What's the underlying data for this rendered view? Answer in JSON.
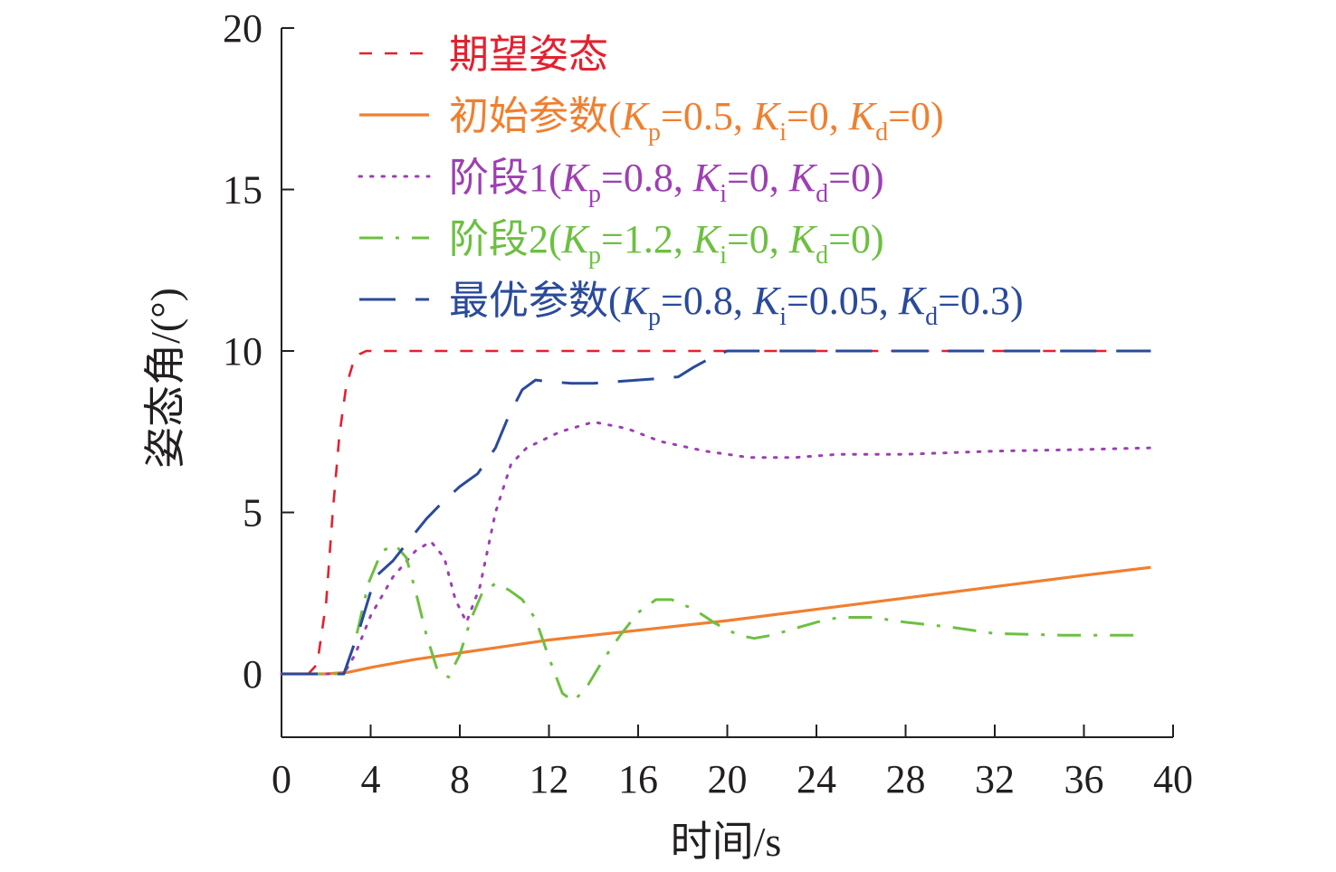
{
  "chart_data": {
    "type": "line",
    "title": "",
    "xlabel": "时间/s",
    "ylabel": "姿态角/(°)",
    "xlim": [
      0,
      40
    ],
    "ylim": [
      -2,
      20
    ],
    "xticks": [
      "0",
      "4",
      "8",
      "12",
      "16",
      "20",
      "24",
      "28",
      "32",
      "36",
      "40"
    ],
    "xtick_values": [
      0,
      4,
      8,
      12,
      16,
      20,
      24,
      28,
      32,
      36,
      40
    ],
    "yticks": [
      "0",
      "5",
      "10",
      "15",
      "20"
    ],
    "ytick_values": [
      0,
      5,
      10,
      15,
      20
    ],
    "grid": false,
    "legend_position": "top",
    "series": [
      {
        "key": "desired",
        "name": "期望姿态",
        "legend": {
          "prefix": "期望姿态",
          "params": []
        },
        "color": "#e5202e",
        "dash": "dashed",
        "x": [
          0,
          1.2,
          1.6,
          2.0,
          2.3,
          2.6,
          2.9,
          3.2,
          3.5,
          3.8,
          4.2,
          39
        ],
        "y": [
          0,
          0,
          0.3,
          2.2,
          5.0,
          7.4,
          8.9,
          9.6,
          9.9,
          10,
          10,
          10
        ]
      },
      {
        "key": "initial",
        "name": "初始参数(Kp=0.5, Ki=0, Kd=0)",
        "legend": {
          "prefix": "初始参数(",
          "params": [
            {
              "k": "K",
              "sub": "p",
              "val": "=0.5, "
            },
            {
              "k": "K",
              "sub": "i",
              "val": "=0, "
            },
            {
              "k": "K",
              "sub": "d",
              "val": "=0)"
            }
          ]
        },
        "color": "#f07f30",
        "dash": "solid",
        "x": [
          0,
          2.0,
          3.0,
          4.0,
          6.0,
          8.0,
          10.0,
          11.0,
          12.0,
          16.0,
          20.0,
          24.0,
          28.0,
          32.0,
          36.0,
          39.0
        ],
        "y": [
          0,
          0,
          0.05,
          0.2,
          0.45,
          0.65,
          0.85,
          0.95,
          1.05,
          1.35,
          1.65,
          2.0,
          2.35,
          2.7,
          3.05,
          3.3
        ]
      },
      {
        "key": "stage1",
        "name": "阶段1(Kp=0.8, Ki=0, Kd=0)",
        "legend": {
          "prefix": "阶段1(",
          "params": [
            {
              "k": "K",
              "sub": "p",
              "val": "=0.8, "
            },
            {
              "k": "K",
              "sub": "i",
              "val": "=0, "
            },
            {
              "k": "K",
              "sub": "d",
              "val": "=0)"
            }
          ]
        },
        "color": "#9d3fb2",
        "dash": "dotted",
        "x": [
          0,
          2.8,
          3.3,
          4.0,
          5.0,
          6.0,
          6.7,
          7.3,
          7.8,
          8.3,
          8.9,
          9.6,
          10.3,
          11.0,
          12.5,
          14.0,
          15.5,
          17.0,
          19.0,
          21.0,
          23.0,
          25.0,
          28.0,
          32.0,
          36.0,
          39.0
        ],
        "y": [
          0,
          0,
          0.6,
          1.8,
          3.0,
          3.8,
          4.1,
          3.6,
          2.3,
          1.6,
          2.7,
          5.0,
          6.5,
          7.0,
          7.5,
          7.8,
          7.6,
          7.2,
          6.9,
          6.7,
          6.7,
          6.8,
          6.8,
          6.9,
          6.95,
          7.0
        ]
      },
      {
        "key": "stage2",
        "name": "阶段2(Kp=1.2, Ki=0, Kd=0)",
        "legend": {
          "prefix": "阶段2(",
          "params": [
            {
              "k": "K",
              "sub": "p",
              "val": "=1.2, "
            },
            {
              "k": "K",
              "sub": "i",
              "val": "=0, "
            },
            {
              "k": "K",
              "sub": "d",
              "val": "=0)"
            }
          ]
        },
        "color": "#6cc041",
        "dash": "dashdot",
        "x": [
          0,
          2.8,
          3.3,
          3.9,
          4.5,
          5.1,
          5.6,
          6.0,
          6.5,
          7.0,
          7.5,
          8.0,
          8.5,
          9.0,
          9.6,
          10.2,
          10.8,
          11.4,
          12.0,
          12.6,
          13.1,
          13.7,
          14.4,
          15.2,
          16.0,
          16.8,
          17.5,
          18.5,
          19.5,
          20.5,
          21.2,
          22.0,
          23.0,
          24.0,
          25.0,
          26.5,
          28.0,
          30.0,
          32.0,
          35.0,
          38.5
        ],
        "y": [
          0,
          0,
          1.0,
          2.8,
          3.8,
          4.0,
          3.6,
          2.6,
          1.2,
          0.1,
          -0.1,
          0.6,
          1.7,
          2.5,
          2.8,
          2.6,
          2.3,
          1.7,
          0.5,
          -0.6,
          -0.85,
          -0.4,
          0.4,
          1.2,
          1.9,
          2.3,
          2.3,
          2.0,
          1.55,
          1.2,
          1.1,
          1.2,
          1.4,
          1.6,
          1.75,
          1.75,
          1.6,
          1.45,
          1.25,
          1.2,
          1.2
        ]
      },
      {
        "key": "optimal",
        "name": "最优参数(Kp=0.8, Ki=0.05, Kd=0.3)",
        "legend": {
          "prefix": "最优参数(",
          "params": [
            {
              "k": "K",
              "sub": "p",
              "val": "=0.8, "
            },
            {
              "k": "K",
              "sub": "i",
              "val": "=0.05, "
            },
            {
              "k": "K",
              "sub": "d",
              "val": "=0.3)"
            }
          ]
        },
        "color": "#2a4a9b",
        "dash": "longdash",
        "x": [
          0,
          2.8,
          3.5,
          4.2,
          5.0,
          5.8,
          6.5,
          7.2,
          8.0,
          8.8,
          9.6,
          10.2,
          10.8,
          11.4,
          12.0,
          13.0,
          14.0,
          15.0,
          16.0,
          17.0,
          17.8,
          18.5,
          19.3,
          20.0,
          21.0,
          23.0,
          26.0,
          30.0,
          34.0,
          39.0
        ],
        "y": [
          0,
          0,
          1.4,
          3.0,
          3.5,
          4.2,
          4.8,
          5.3,
          5.8,
          6.2,
          7.0,
          8.0,
          8.8,
          9.1,
          9.05,
          9.0,
          9.0,
          9.05,
          9.1,
          9.15,
          9.2,
          9.5,
          9.8,
          10.0,
          10.0,
          10.0,
          10.0,
          10.0,
          10.0,
          10.0
        ]
      }
    ]
  }
}
